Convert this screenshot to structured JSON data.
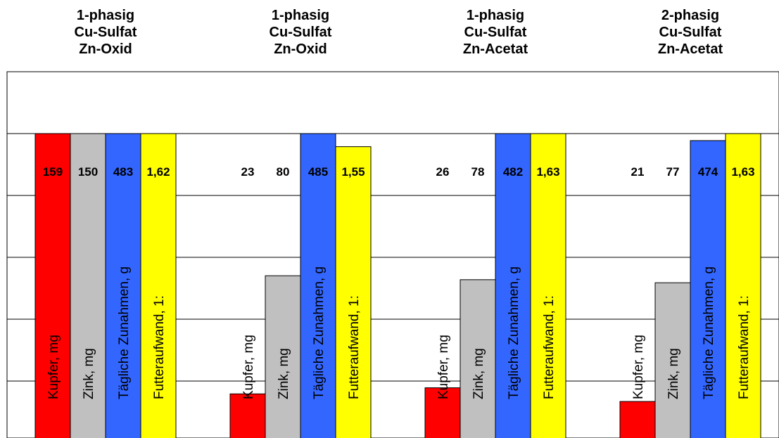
{
  "chart_data": {
    "type": "bar",
    "groups": [
      {
        "title": [
          "1-phasig",
          "Cu-Sulfat",
          "Zn-Oxid"
        ]
      },
      {
        "title": [
          "1-phasig",
          "Cu-Sulfat",
          "Zn-Oxid"
        ]
      },
      {
        "title": [
          "1-phasig",
          "Cu-Sulfat",
          "Zn-Acetat"
        ]
      },
      {
        "title": [
          "2-phasig",
          "Cu-Sulfat",
          "Zn-Acetat"
        ]
      }
    ],
    "series": [
      {
        "name": "Kupfer, mg",
        "color": "#ff0000",
        "values": [
          159,
          23,
          26,
          21
        ],
        "labels": [
          "159",
          "23",
          "26",
          "21"
        ],
        "relative_heights": [
          1.0,
          0.145,
          0.165,
          0.12
        ]
      },
      {
        "name": "Zink, mg",
        "color": "#c0c0c0",
        "values": [
          150,
          80,
          78,
          77
        ],
        "labels": [
          "150",
          "80",
          "78",
          "77"
        ],
        "relative_heights": [
          1.0,
          0.533,
          0.52,
          0.51
        ]
      },
      {
        "name": "Tägliche Zunahmen, g",
        "color": "#3366ff",
        "values": [
          483,
          485,
          482,
          474
        ],
        "labels": [
          "483",
          "485",
          "482",
          "474"
        ],
        "relative_heights": [
          1.0,
          1.0,
          1.0,
          0.977
        ]
      },
      {
        "name": "Futteraufwand, 1:",
        "color": "#ffff00",
        "values": [
          1.62,
          1.55,
          1.63,
          1.63
        ],
        "labels": [
          "1,62",
          "1,55",
          "1,63",
          "1,63"
        ],
        "relative_heights": [
          1.0,
          0.957,
          1.0,
          1.0
        ]
      }
    ],
    "grid": true,
    "legend": "none"
  }
}
